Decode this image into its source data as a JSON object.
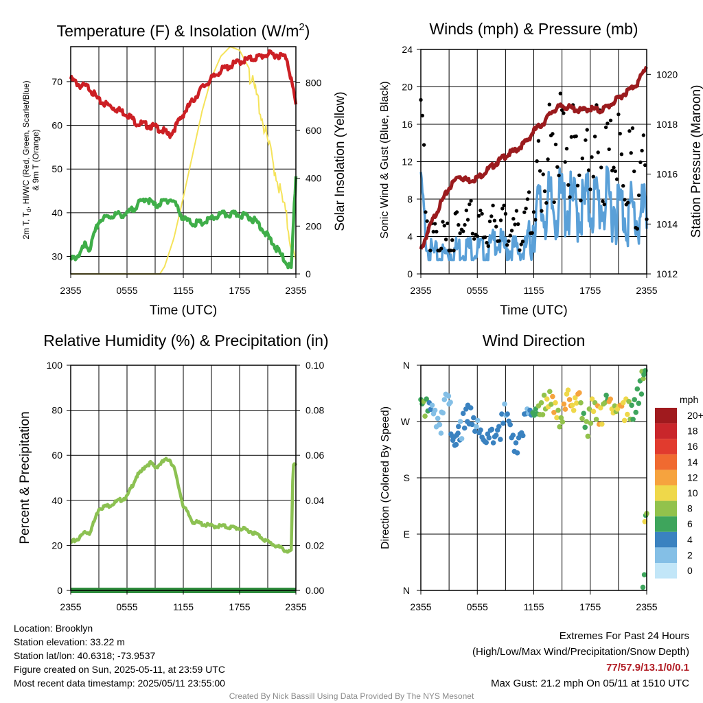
{
  "charts": {
    "temp": {
      "title": "Temperature (F) & Insolation (W/m",
      "title_sup": "2",
      "title_end": ")",
      "ylabel_line1": "2m T, T",
      "ylabel_sub": "d",
      "ylabel_line1_end": ", HI/WC (Red, Green, Scarlet/Blue)",
      "ylabel_line2": "& 9m T (Orange)",
      "y2label": "Solar Insolation (Yellow)",
      "xlabel": "Time (UTC)"
    },
    "wind": {
      "title": "Winds (mph) & Pressure (mb)",
      "ylabel": "Sonic Wind & Gust (Blue, Black)",
      "y2label": "Station Pressure (Maroon)",
      "xlabel": "Time (UTC)"
    },
    "rh": {
      "title": "Relative Humidity (%) & Precipitation (in)",
      "ylabel": "Percent & Precipitation"
    },
    "dir": {
      "title": "Wind Direction",
      "ylabel": "Direction (Colored By Speed)",
      "legend_title": "mph"
    }
  },
  "footer": {
    "location": "Location: Brooklyn",
    "elevation": "Station elevation: 33.22 m",
    "latlon": "Station lat/lon: 40.6318; -73.9537",
    "created": "Figure created on Sun, 2025-05-11, at 23:59 UTC",
    "recent": "Most recent data timestamp: 2025/05/11 23:55:00",
    "extremes_title": "Extremes For Past 24 Hours",
    "extremes_legend": "(High/Low/Max Wind/Precipitation/Snow Depth)",
    "extremes_values": "77/57.9/13.1/0/0.1",
    "max_gust": "Max Gust: 21.2 mph On 05/11 at 1510 UTC",
    "credit": "Created By Nick Bassill Using Data Provided By The NYS Mesonet"
  },
  "colors": {
    "temperature": "#cc1f24",
    "dewpoint": "#3fae49",
    "insolation": "#f5e35a",
    "wind": "#5aa0d8",
    "gust": "#000000",
    "pressure": "#9b1b1e",
    "rh": "#8cc152",
    "precip": "#2e8b3c"
  },
  "chart_data": [
    {
      "type": "line",
      "title": "Temperature (F) & Insolation (W/m2)",
      "xlabel": "Time (UTC)",
      "ylabel": "2m T, Td, HI/WC (Red, Green, Scarlet/Blue) & 9m T (Orange)",
      "y2label": "Solar Insolation (Yellow)",
      "x_ticks": [
        "2355",
        "0555",
        "1155",
        "1755",
        "2355"
      ],
      "ylim": [
        26,
        78
      ],
      "y_ticks": [
        30,
        40,
        50,
        60,
        70
      ],
      "y2lim": [
        0,
        950
      ],
      "y2_ticks": [
        0,
        200,
        400,
        600,
        800
      ],
      "grid": true,
      "x_hours": [
        0,
        1,
        1.5,
        2,
        3,
        4,
        5,
        6,
        7,
        8,
        9,
        10,
        10.5,
        11,
        12,
        13,
        14,
        15,
        16,
        17,
        18,
        19,
        20,
        21,
        22,
        23,
        23.5,
        24
      ],
      "series": [
        {
          "name": "2m T (Red)",
          "axis": "y",
          "values": [
            71,
            69.5,
            69.3,
            69,
            66,
            65,
            64,
            63,
            61,
            60.5,
            60,
            59,
            58,
            59.5,
            63,
            66,
            69,
            71,
            73,
            74,
            75,
            75.5,
            76,
            76.7,
            76.5,
            76,
            71,
            65
          ]
        },
        {
          "name": "Td (Green)",
          "axis": "y",
          "values": [
            29.5,
            31,
            33,
            32,
            38.5,
            39.5,
            40,
            40,
            42,
            43.8,
            42,
            43,
            43.5,
            43,
            39,
            38,
            38,
            39,
            40,
            40,
            40,
            39.5,
            38,
            35,
            32,
            29,
            27.5,
            49
          ]
        }
      ],
      "insolation": {
        "name": "Solar Insolation (Yellow)",
        "x_hours": [
          0,
          9.5,
          10,
          11,
          12,
          13,
          14,
          15,
          16,
          17,
          18,
          19,
          20,
          21,
          22,
          23,
          23.5,
          24
        ],
        "values": [
          0,
          0,
          30,
          150,
          320,
          500,
          680,
          820,
          910,
          950,
          935,
          860,
          740,
          570,
          420,
          250,
          140,
          60
        ]
      }
    },
    {
      "type": "scatter",
      "title": "Winds (mph) & Pressure (mb)",
      "xlabel": "Time (UTC)",
      "ylabel": "Sonic Wind & Gust (Blue, Black)",
      "y2label": "Station Pressure (Maroon)",
      "x_ticks": [
        "2355",
        "0555",
        "1155",
        "1755",
        "2355"
      ],
      "ylim": [
        0,
        24
      ],
      "y_ticks": [
        0,
        4,
        8,
        12,
        16,
        20,
        24
      ],
      "y2lim": [
        1012,
        1021
      ],
      "y2_ticks": [
        1012,
        1014,
        1016,
        1018,
        1020
      ],
      "grid": true,
      "x_hours": [
        0,
        0.5,
        1,
        2,
        3,
        4,
        5,
        6,
        7,
        8,
        9,
        10,
        11,
        11.5,
        12,
        13,
        14,
        15,
        16,
        17,
        18,
        19,
        20,
        21,
        22,
        23,
        24
      ],
      "series": [
        {
          "name": "Sonic Wind (Blue)",
          "axis": "y",
          "values": [
            11,
            5,
            3,
            2.5,
            3,
            3.5,
            3.5,
            3.5,
            3,
            4.5,
            3.5,
            3.5,
            3,
            5,
            8,
            9,
            9,
            9.5,
            9,
            9,
            9.5,
            9.5,
            9.5,
            9,
            8.5,
            8,
            8
          ]
        },
        {
          "name": "Gust (Black)",
          "axis": "y",
          "values": [
            19.5,
            10,
            4.5,
            4,
            5,
            6,
            7,
            6.5,
            5.5,
            7,
            6.5,
            6,
            6,
            9,
            12,
            14,
            16,
            19,
            16,
            15,
            16,
            15,
            14,
            15,
            14,
            13,
            12
          ]
        },
        {
          "name": "Station Pressure (Maroon)",
          "axis": "y2",
          "values": [
            1013,
            1013.5,
            1014,
            1014.8,
            1015.5,
            1016,
            1015.8,
            1015.9,
            1016.2,
            1016.5,
            1016.8,
            1017,
            1017.3,
            1017.5,
            1017.8,
            1018.1,
            1018.6,
            1018.8,
            1018.7,
            1018.6,
            1018.7,
            1018.6,
            1018.8,
            1019.1,
            1019.4,
            1019.7,
            1020.4
          ]
        }
      ]
    },
    {
      "type": "line",
      "title": "Relative Humidity (%) & Precipitation (in)",
      "ylabel": "Percent & Precipitation",
      "x_ticks": [
        "2355",
        "0555",
        "1155",
        "1755",
        "2355"
      ],
      "ylim": [
        0,
        100
      ],
      "y_ticks": [
        0,
        20,
        40,
        60,
        80,
        100
      ],
      "y2lim": [
        0,
        0.1
      ],
      "y2_ticks": [
        "0.00",
        "0.02",
        "0.04",
        "0.06",
        "0.08",
        "0.10"
      ],
      "grid": true,
      "x_hours": [
        0,
        1,
        1.5,
        2,
        2.5,
        3,
        4,
        5,
        6,
        7,
        7.5,
        8,
        8.5,
        9,
        10,
        10.5,
        11,
        12,
        13,
        14,
        15,
        16,
        17,
        18,
        19,
        20,
        21,
        22,
        23,
        23.5,
        23.7,
        24
      ],
      "series": [
        {
          "name": "Relative Humidity (Green)",
          "axis": "y",
          "values": [
            21.5,
            24,
            26.5,
            26,
            31,
            37,
            38,
            40,
            42,
            51,
            53,
            56,
            57,
            55,
            58,
            59,
            55,
            38,
            31,
            30,
            29,
            29,
            28.5,
            28,
            27,
            25,
            22,
            20,
            18,
            17.5,
            55,
            57
          ]
        },
        {
          "name": "Precipitation (Dark Green)",
          "axis": "y2",
          "values": [
            0,
            0,
            0,
            0,
            0,
            0,
            0,
            0,
            0,
            0,
            0,
            0,
            0,
            0,
            0,
            0,
            0,
            0,
            0,
            0,
            0,
            0,
            0,
            0,
            0,
            0,
            0,
            0,
            0,
            0,
            0,
            0
          ]
        }
      ]
    },
    {
      "type": "scatter",
      "title": "Wind Direction",
      "ylabel": "Direction (Colored By Speed)",
      "x_ticks": [
        "2355",
        "0555",
        "1155",
        "1755",
        "2355"
      ],
      "y_ticks": [
        "N",
        "E",
        "S",
        "W",
        "N"
      ],
      "ylim": [
        0,
        360
      ],
      "grid": true,
      "legend_placement": "right",
      "legend_title": "mph",
      "legend_labels": [
        "20+",
        "18",
        "16",
        "14",
        "12",
        "10",
        "8",
        "6",
        "4",
        "2",
        "0"
      ],
      "legend_colors": [
        "#a01a1e",
        "#c9262b",
        "#e13b2e",
        "#f06a30",
        "#f6a33e",
        "#efd84a",
        "#92c24c",
        "#3ea55c",
        "#3a82c0",
        "#84bfe6",
        "#c2e6f8"
      ],
      "points": [
        {
          "h": 0.0,
          "deg": 305,
          "mph": 6
        },
        {
          "h": 0.3,
          "deg": 302,
          "mph": 8
        },
        {
          "h": 0.6,
          "deg": 306,
          "mph": 6
        },
        {
          "h": 0.9,
          "deg": 300,
          "mph": 4
        },
        {
          "h": 1.2,
          "deg": 296,
          "mph": 2
        },
        {
          "h": 1.5,
          "deg": 288,
          "mph": 2
        },
        {
          "h": 1.8,
          "deg": 275,
          "mph": 2
        },
        {
          "h": 2.0,
          "deg": 265,
          "mph": 2
        },
        {
          "h": 2.2,
          "deg": 285,
          "mph": 2
        },
        {
          "h": 2.5,
          "deg": 305,
          "mph": 2
        },
        {
          "h": 2.8,
          "deg": 312,
          "mph": 2
        },
        {
          "h": 3.0,
          "deg": 298,
          "mph": 2
        },
        {
          "h": 3.2,
          "deg": 250,
          "mph": 4
        },
        {
          "h": 3.4,
          "deg": 240,
          "mph": 4
        },
        {
          "h": 3.6,
          "deg": 232,
          "mph": 4
        },
        {
          "h": 3.8,
          "deg": 248,
          "mph": 4
        },
        {
          "h": 4.0,
          "deg": 262,
          "mph": 4
        },
        {
          "h": 4.2,
          "deg": 270,
          "mph": 2
        },
        {
          "h": 4.5,
          "deg": 283,
          "mph": 4
        },
        {
          "h": 4.8,
          "deg": 290,
          "mph": 4
        },
        {
          "h": 5.0,
          "deg": 296,
          "mph": 4
        },
        {
          "h": 5.3,
          "deg": 292,
          "mph": 4
        },
        {
          "h": 5.6,
          "deg": 276,
          "mph": 4
        },
        {
          "h": 5.9,
          "deg": 262,
          "mph": 2
        },
        {
          "h": 6.2,
          "deg": 252,
          "mph": 4
        },
        {
          "h": 6.5,
          "deg": 245,
          "mph": 4
        },
        {
          "h": 6.8,
          "deg": 238,
          "mph": 4
        },
        {
          "h": 7.1,
          "deg": 250,
          "mph": 4
        },
        {
          "h": 7.4,
          "deg": 256,
          "mph": 4
        },
        {
          "h": 7.7,
          "deg": 236,
          "mph": 4
        },
        {
          "h": 8.0,
          "deg": 248,
          "mph": 4
        },
        {
          "h": 8.3,
          "deg": 262,
          "mph": 4
        },
        {
          "h": 8.6,
          "deg": 282,
          "mph": 4
        },
        {
          "h": 8.9,
          "deg": 298,
          "mph": 2
        },
        {
          "h": 9.2,
          "deg": 282,
          "mph": 4
        },
        {
          "h": 9.5,
          "deg": 265,
          "mph": 4
        },
        {
          "h": 9.8,
          "deg": 248,
          "mph": 4
        },
        {
          "h": 10.1,
          "deg": 236,
          "mph": 4
        },
        {
          "h": 10.4,
          "deg": 244,
          "mph": 4
        },
        {
          "h": 10.7,
          "deg": 252,
          "mph": 4
        },
        {
          "h": 11.0,
          "deg": 282,
          "mph": 4
        },
        {
          "h": 11.3,
          "deg": 290,
          "mph": 2
        },
        {
          "h": 11.6,
          "deg": 288,
          "mph": 4
        },
        {
          "h": 11.9,
          "deg": 284,
          "mph": 6
        },
        {
          "h": 12.2,
          "deg": 290,
          "mph": 6
        },
        {
          "h": 12.5,
          "deg": 295,
          "mph": 8
        },
        {
          "h": 12.8,
          "deg": 300,
          "mph": 8
        },
        {
          "h": 13.1,
          "deg": 312,
          "mph": 8
        },
        {
          "h": 13.4,
          "deg": 306,
          "mph": 10
        },
        {
          "h": 13.7,
          "deg": 318,
          "mph": 8
        },
        {
          "h": 14.0,
          "deg": 310,
          "mph": 12
        },
        {
          "h": 14.3,
          "deg": 300,
          "mph": 10
        },
        {
          "h": 14.6,
          "deg": 288,
          "mph": 8
        },
        {
          "h": 14.9,
          "deg": 276,
          "mph": 8
        },
        {
          "h": 15.2,
          "deg": 298,
          "mph": 12
        },
        {
          "h": 15.5,
          "deg": 314,
          "mph": 10
        },
        {
          "h": 15.8,
          "deg": 305,
          "mph": 12
        },
        {
          "h": 16.1,
          "deg": 296,
          "mph": 10
        },
        {
          "h": 16.4,
          "deg": 308,
          "mph": 10
        },
        {
          "h": 16.7,
          "deg": 314,
          "mph": 12
        },
        {
          "h": 17.0,
          "deg": 300,
          "mph": 8
        },
        {
          "h": 17.3,
          "deg": 283,
          "mph": 6
        },
        {
          "h": 17.6,
          "deg": 270,
          "mph": 8
        },
        {
          "h": 17.9,
          "deg": 290,
          "mph": 8
        },
        {
          "h": 18.2,
          "deg": 306,
          "mph": 10
        },
        {
          "h": 18.5,
          "deg": 300,
          "mph": 8
        },
        {
          "h": 18.8,
          "deg": 295,
          "mph": 12
        },
        {
          "h": 19.1,
          "deg": 292,
          "mph": 10
        },
        {
          "h": 19.4,
          "deg": 298,
          "mph": 8
        },
        {
          "h": 19.7,
          "deg": 312,
          "mph": 6
        },
        {
          "h": 20.0,
          "deg": 302,
          "mph": 12
        },
        {
          "h": 20.3,
          "deg": 290,
          "mph": 10
        },
        {
          "h": 20.6,
          "deg": 295,
          "mph": 8
        },
        {
          "h": 20.9,
          "deg": 290,
          "mph": 10
        },
        {
          "h": 21.2,
          "deg": 296,
          "mph": 12
        },
        {
          "h": 21.5,
          "deg": 300,
          "mph": 10
        },
        {
          "h": 21.8,
          "deg": 306,
          "mph": 10
        },
        {
          "h": 22.1,
          "deg": 302,
          "mph": 8
        },
        {
          "h": 22.4,
          "deg": 296,
          "mph": 6
        },
        {
          "h": 22.7,
          "deg": 305,
          "mph": 6
        },
        {
          "h": 23.0,
          "deg": 322,
          "mph": 6
        },
        {
          "h": 23.3,
          "deg": 335,
          "mph": 6
        },
        {
          "h": 23.5,
          "deg": 350,
          "mph": 8
        },
        {
          "h": 23.7,
          "deg": 345,
          "mph": 6
        },
        {
          "h": 23.8,
          "deg": 110,
          "mph": 10
        },
        {
          "h": 23.9,
          "deg": 120,
          "mph": 6
        },
        {
          "h": 24.0,
          "deg": 123,
          "mph": 8
        },
        {
          "h": 23.6,
          "deg": 5,
          "mph": 6
        },
        {
          "h": 23.75,
          "deg": 25,
          "mph": 6
        }
      ]
    }
  ]
}
